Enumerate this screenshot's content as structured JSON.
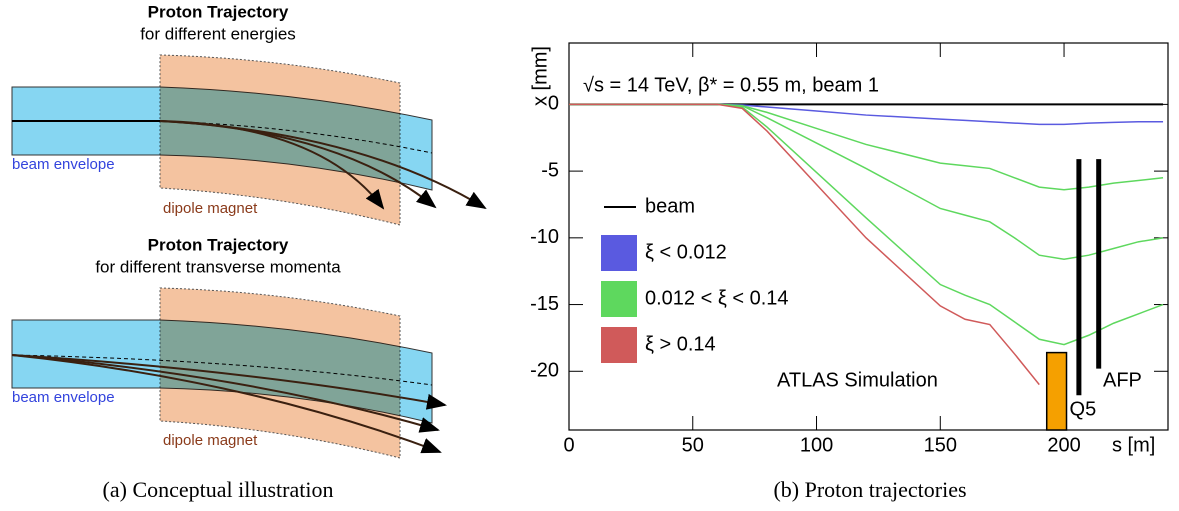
{
  "diagram": {
    "top": {
      "title": "Proton Trajectory",
      "subtitle": "for different energies",
      "envelope_label": "beam envelope",
      "magnet_label": "dipole magnet"
    },
    "bottom": {
      "title": "Proton Trajectory",
      "subtitle": "for different transverse momenta",
      "envelope_label": "beam envelope",
      "magnet_label": "dipole magnet"
    },
    "caption": "(a) Conceptual illustration"
  },
  "chart_caption": "(b) Proton trajectories",
  "chart_data": {
    "type": "line",
    "x_label": "s [m]",
    "y_label": "x [mm]",
    "annotations": [
      "√s = 14 TeV, β* = 0.55 m, beam 1",
      "ATLAS Simulation"
    ],
    "xlim": [
      0,
      242
    ],
    "ylim": [
      -24.4,
      4.6
    ],
    "xticks": [
      0,
      50,
      100,
      150,
      200
    ],
    "yticks": [
      0,
      -5,
      -10,
      -15,
      -20
    ],
    "x": [
      0,
      60,
      70,
      80,
      100,
      120,
      150,
      160,
      170,
      180,
      190,
      200,
      210,
      220,
      230,
      240
    ],
    "series": [
      {
        "name": "beam",
        "color": "#000000",
        "legend_key": "line",
        "lines": [
          [
            0,
            0,
            0,
            0,
            0,
            0,
            0,
            0,
            0,
            0,
            0,
            0,
            0,
            0,
            0,
            0
          ]
        ]
      },
      {
        "name": "ξ < 0.012",
        "color": "#5a5ae0",
        "legend_key": "box",
        "lines": [
          [
            0,
            0,
            -0.05,
            -0.2,
            -0.5,
            -0.8,
            -1.1,
            -1.2,
            -1.3,
            -1.4,
            -1.5,
            -1.5,
            -1.4,
            -1.35,
            -1.3,
            -1.3
          ]
        ]
      },
      {
        "name": "0.012 < ξ < 0.14",
        "color": "#5ed85e",
        "legend_key": "box",
        "lines": [
          [
            0,
            0,
            -0.1,
            -0.6,
            -1.8,
            -3.0,
            -4.4,
            -4.6,
            -4.8,
            -5.5,
            -6.2,
            -6.4,
            -6.2,
            -5.9,
            -5.7,
            -5.5
          ],
          [
            0,
            0,
            -0.1,
            -1.0,
            -2.9,
            -4.8,
            -7.8,
            -8.3,
            -8.8,
            -10.0,
            -11.3,
            -11.6,
            -11.3,
            -10.8,
            -10.3,
            -10.0
          ],
          [
            0,
            0,
            -0.2,
            -1.7,
            -5.1,
            -8.5,
            -13.5,
            -14.3,
            -15.0,
            -16.3,
            -17.6,
            -18.0,
            -17.3,
            -16.4,
            -15.7,
            -15.0
          ]
        ]
      },
      {
        "name": "ξ > 0.14",
        "color": "#d05a5a",
        "legend_key": "box",
        "lines": [
          [
            0,
            0,
            -0.3,
            -2.0,
            -6.0,
            -10.0,
            -15.1,
            -16.1,
            -16.5,
            -18.7,
            -21.0,
            null,
            null,
            null,
            null,
            null
          ]
        ]
      }
    ],
    "q5": {
      "label": "Q5",
      "x": [
        193,
        201
      ],
      "y": [
        -24.4,
        -18.6
      ],
      "color": "#f5a000"
    },
    "afp": {
      "label": "AFP",
      "color": "#000000",
      "lines": [
        {
          "x": 206,
          "y": [
            -21.8,
            -4.1
          ]
        },
        {
          "x": 214,
          "y": [
            -19.8,
            -4.1
          ]
        }
      ]
    }
  }
}
